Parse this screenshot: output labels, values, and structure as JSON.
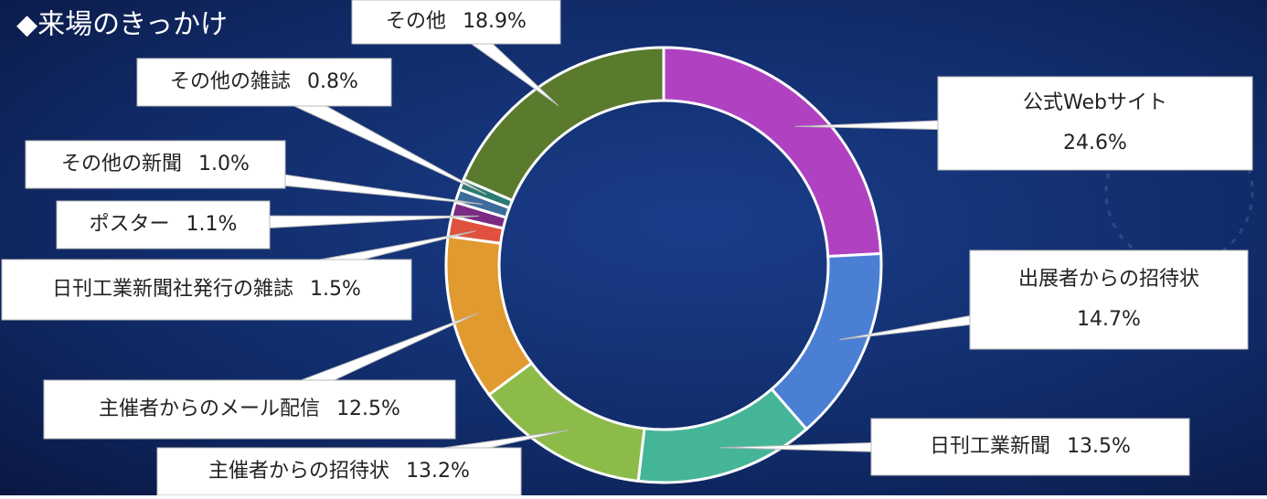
{
  "chart_data": {
    "type": "donut",
    "title": "◆来場のきっかけ",
    "categories": [
      "公式Webサイト",
      "出展者からの招待状",
      "日刊工業新聞",
      "主催者からの招待状",
      "主催者からのメール配信",
      "日刊工業新聞社発行の雑誌",
      "ポスター",
      "その他の新聞",
      "その他の雑誌",
      "その他"
    ],
    "values": [
      24.6,
      14.7,
      13.5,
      13.2,
      12.5,
      1.5,
      1.1,
      1.0,
      0.8,
      18.9
    ],
    "value_labels": [
      "24.6%",
      "14.7%",
      "13.5%",
      "13.2%",
      "12.5%",
      "1.5%",
      "1.1%",
      "1.0%",
      "0.8%",
      "18.9%"
    ],
    "colors": [
      "#b042c2",
      "#4a7fd4",
      "#45b598",
      "#8cbb4a",
      "#e09a30",
      "#e0513f",
      "#7a2a82",
      "#3c6b9c",
      "#2c7b72",
      "#5a7a2e"
    ]
  }
}
